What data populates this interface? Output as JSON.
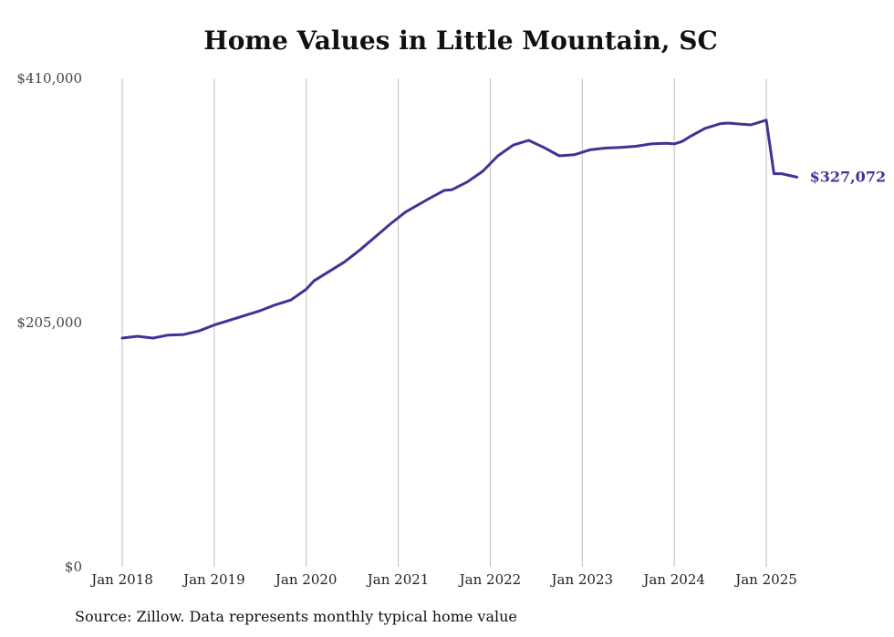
{
  "chart_data": {
    "type": "line",
    "title": "Home Values in Little Mountain, SC",
    "xlabel": "",
    "ylabel": "",
    "ylim": [
      0,
      410000
    ],
    "y_ticks": [
      {
        "value": 0,
        "label": "$0"
      },
      {
        "value": 205000,
        "label": "$205,000"
      },
      {
        "value": 410000,
        "label": "$410,000"
      }
    ],
    "x_ticks": [
      {
        "value": 2018,
        "label": "Jan 2018"
      },
      {
        "value": 2019,
        "label": "Jan 2019"
      },
      {
        "value": 2020,
        "label": "Jan 2020"
      },
      {
        "value": 2021,
        "label": "Jan 2021"
      },
      {
        "value": 2022,
        "label": "Jan 2022"
      },
      {
        "value": 2023,
        "label": "Jan 2023"
      },
      {
        "value": 2024,
        "label": "Jan 2024"
      },
      {
        "value": 2025,
        "label": "Jan 2025"
      }
    ],
    "xlim": [
      2018,
      2025.4
    ],
    "grid": "vertical",
    "line_color": "#3d3594",
    "end_label": "$327,072",
    "series": [
      {
        "x": [
          2018.0,
          2018.167,
          2018.333,
          2018.5,
          2018.667,
          2018.833,
          2019.0,
          2019.167,
          2019.333,
          2019.5,
          2019.667,
          2019.833,
          2020.0,
          2020.083,
          2020.25,
          2020.417,
          2020.583,
          2020.75,
          2020.917,
          2021.083,
          2021.333,
          2021.5,
          2021.583,
          2021.75,
          2021.917,
          2022.083,
          2022.25,
          2022.417,
          2022.583,
          2022.75,
          2022.917,
          2023.0,
          2023.083,
          2023.25,
          2023.417,
          2023.583,
          2023.75,
          2023.917,
          2024.0,
          2024.083,
          2024.167,
          2024.333,
          2024.5,
          2024.583,
          2024.667,
          2024.833,
          2025.0,
          2025.083,
          2025.167,
          2025.333
        ],
        "values": [
          192000,
          193500,
          192000,
          194500,
          195000,
          198000,
          203000,
          207000,
          211000,
          215000,
          220000,
          224000,
          233000,
          240000,
          248000,
          256000,
          266000,
          277000,
          288000,
          298000,
          309000,
          316000,
          316500,
          323000,
          332000,
          345000,
          354000,
          358000,
          352000,
          345000,
          346000,
          348000,
          350000,
          351500,
          352000,
          353000,
          355000,
          355500,
          355000,
          357000,
          361000,
          368000,
          372000,
          372500,
          372000,
          371000,
          375000,
          330000,
          330000,
          327072
        ]
      }
    ]
  },
  "source_note": "Source: Zillow. Data represents monthly typical home value"
}
